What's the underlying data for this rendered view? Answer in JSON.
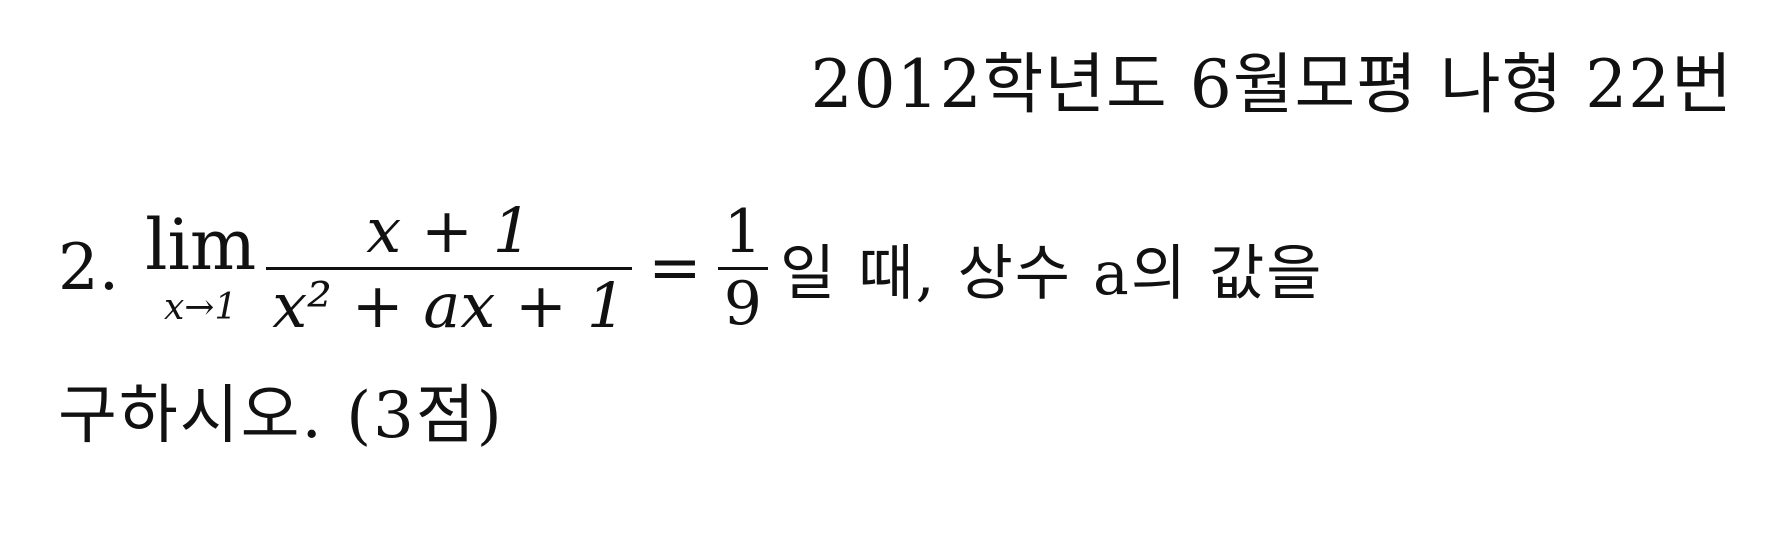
{
  "source_label": "2012학년도 6월모평 나형 22번",
  "problem": {
    "number": "2.",
    "lim_word": "lim",
    "lim_subscript": "x→1",
    "numerator": "x + 1",
    "denominator": "x² + ax + 1",
    "equals": "=",
    "rhs_numerator": "1",
    "rhs_denominator": "9",
    "text_after_fraction": "일 때, 상수 a의 값을",
    "second_line": "구하시오. (3점)"
  }
}
